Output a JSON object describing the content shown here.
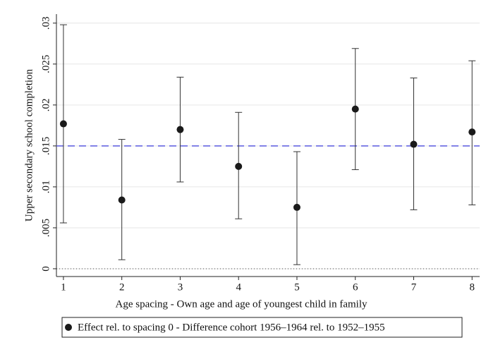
{
  "chart_data": {
    "type": "errorbar_scatter",
    "xlabel": "Age spacing -  Own age and age of youngest child in family",
    "ylabel": "Upper secondary school completion",
    "x": [
      1,
      2,
      3,
      4,
      5,
      6,
      7,
      8
    ],
    "series": [
      {
        "name": "Effect rel. to spacing 0 - Difference cohort 1956–1964 rel. to 1952–1955",
        "color": "#1a1a1a",
        "values": [
          0.0177,
          0.0084,
          0.017,
          0.0125,
          0.0075,
          0.0195,
          0.0152,
          0.0167
        ],
        "lower": [
          0.0056,
          0.0011,
          0.0106,
          0.0061,
          0.0005,
          0.0121,
          0.0072,
          0.0078
        ],
        "upper": [
          0.0298,
          0.0158,
          0.0234,
          0.0191,
          0.0143,
          0.0269,
          0.0233,
          0.0254
        ]
      }
    ],
    "reference_line": {
      "value": 0.015,
      "color": "#5a5ae0",
      "style": "dashed"
    },
    "zero_line": {
      "value": 0,
      "style": "dotted"
    },
    "xlim": [
      0.88,
      8.13
    ],
    "xticks": [
      1,
      2,
      3,
      4,
      5,
      6,
      7,
      8
    ],
    "ylim": [
      -0.00095,
      0.0311
    ],
    "yticks": [
      {
        "value": 0,
        "label": "0"
      },
      {
        "value": 0.005,
        "label": ".005"
      },
      {
        "value": 0.01,
        "label": ".01"
      },
      {
        "value": 0.015,
        "label": ".015"
      },
      {
        "value": 0.02,
        "label": ".02"
      },
      {
        "value": 0.025,
        "label": ".025"
      },
      {
        "value": 0.03,
        "label": ".03"
      }
    ],
    "grid": true,
    "legend": "bottom"
  }
}
